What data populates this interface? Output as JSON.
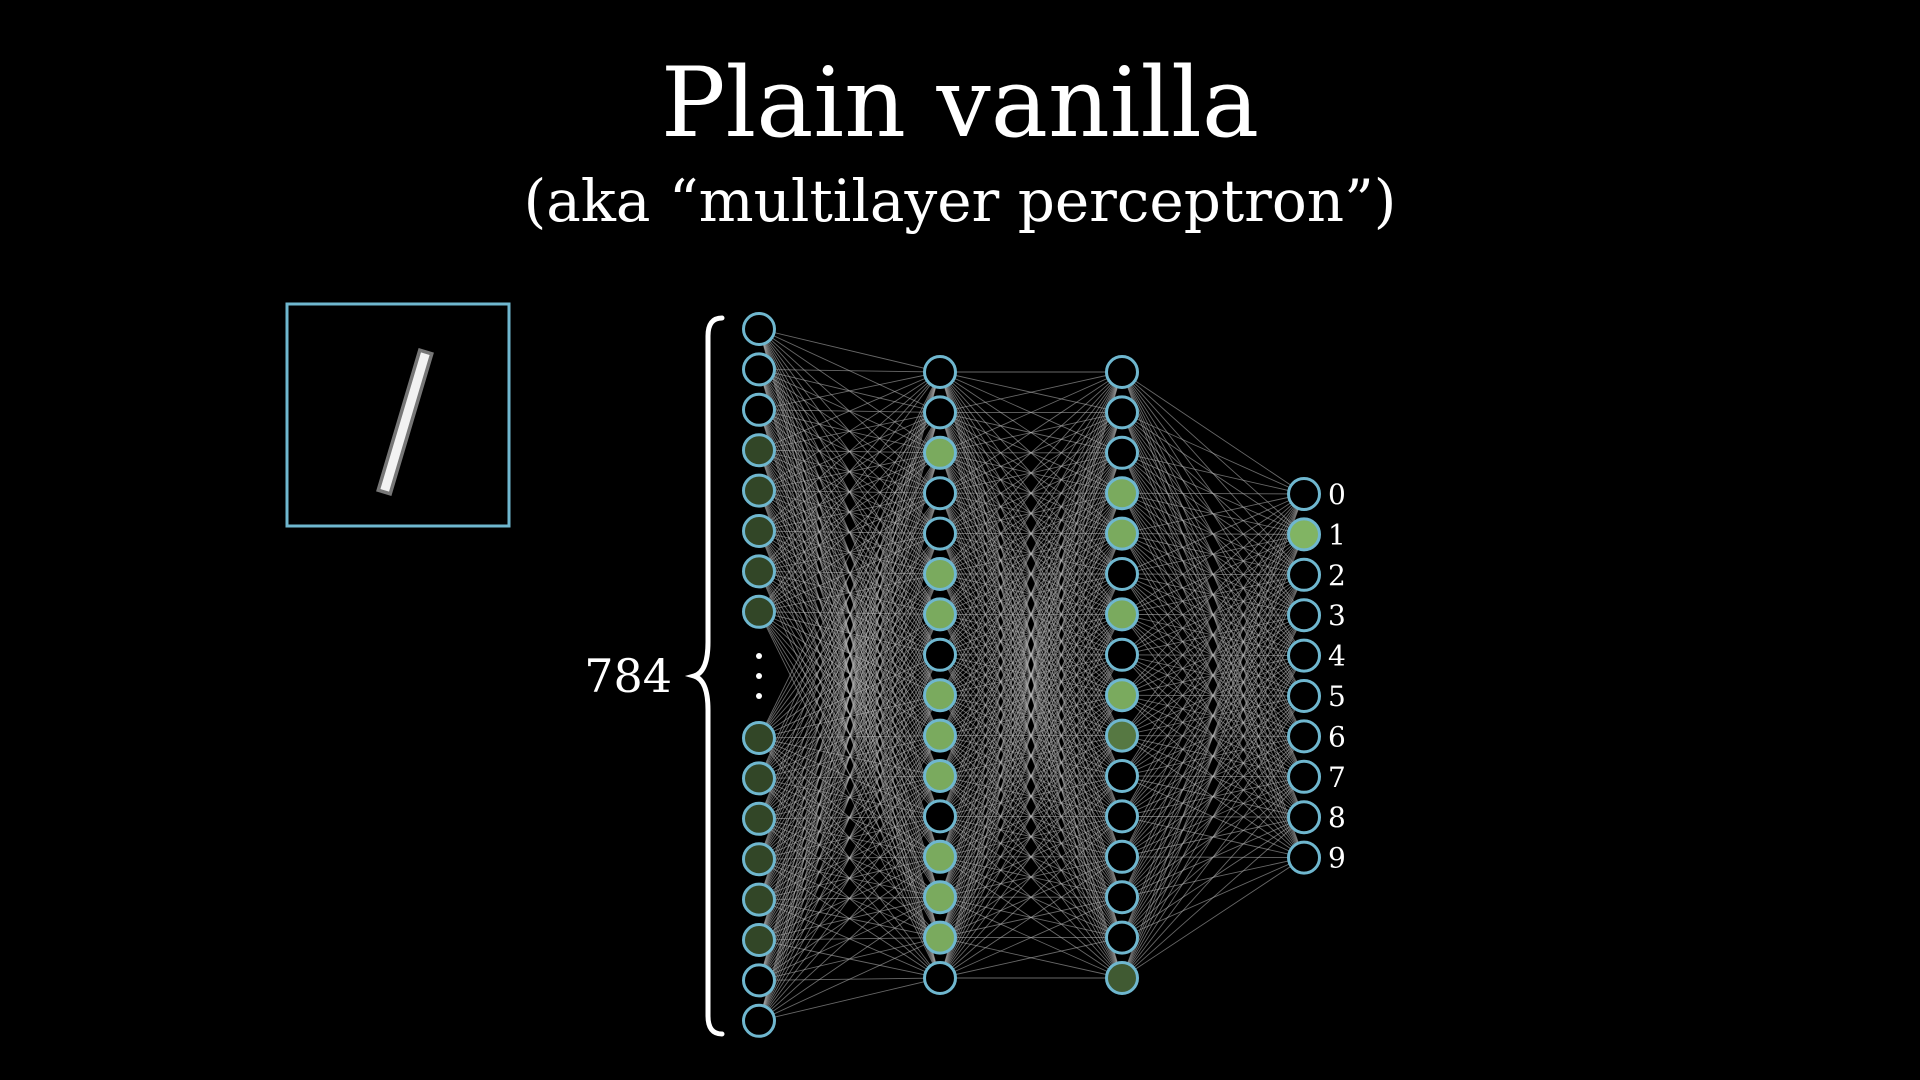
{
  "title": "Plain vanilla",
  "subtitle": "(aka “multilayer perceptron”)",
  "input_count_label": "784",
  "output_labels": [
    "0",
    "1",
    "2",
    "3",
    "4",
    "5",
    "6",
    "7",
    "8",
    "9"
  ],
  "colors": {
    "background": "#000000",
    "neuron_stroke": "#6fb7cf",
    "connection": "#bbbbbb",
    "text": "#ffffff",
    "input_box": "#6fb7cf"
  },
  "layers": {
    "input_top": [
      0.0,
      0.0,
      0.0,
      0.35,
      0.35,
      0.35,
      0.35,
      0.35
    ],
    "input_bottom": [
      0.35,
      0.35,
      0.35,
      0.35,
      0.35,
      0.35,
      0.0,
      0.0
    ],
    "hidden1": [
      0.0,
      0.0,
      0.85,
      0.0,
      0.0,
      0.85,
      0.85,
      0.0,
      0.85,
      0.85,
      0.85,
      0.0,
      0.85,
      0.85,
      0.85,
      0.0
    ],
    "hidden2": [
      0.0,
      0.0,
      0.0,
      0.85,
      0.85,
      0.0,
      0.85,
      0.0,
      0.85,
      0.6,
      0.0,
      0.0,
      0.0,
      0.0,
      0.0,
      0.45
    ],
    "output": [
      0.0,
      0.9,
      0.0,
      0.0,
      0.0,
      0.0,
      0.0,
      0.0,
      0.0,
      0.0
    ]
  },
  "icons": {
    "input_image": "handwritten-digit-one-icon",
    "ellipsis": "vertical-ellipsis-icon",
    "brace": "left-curly-brace-icon"
  }
}
